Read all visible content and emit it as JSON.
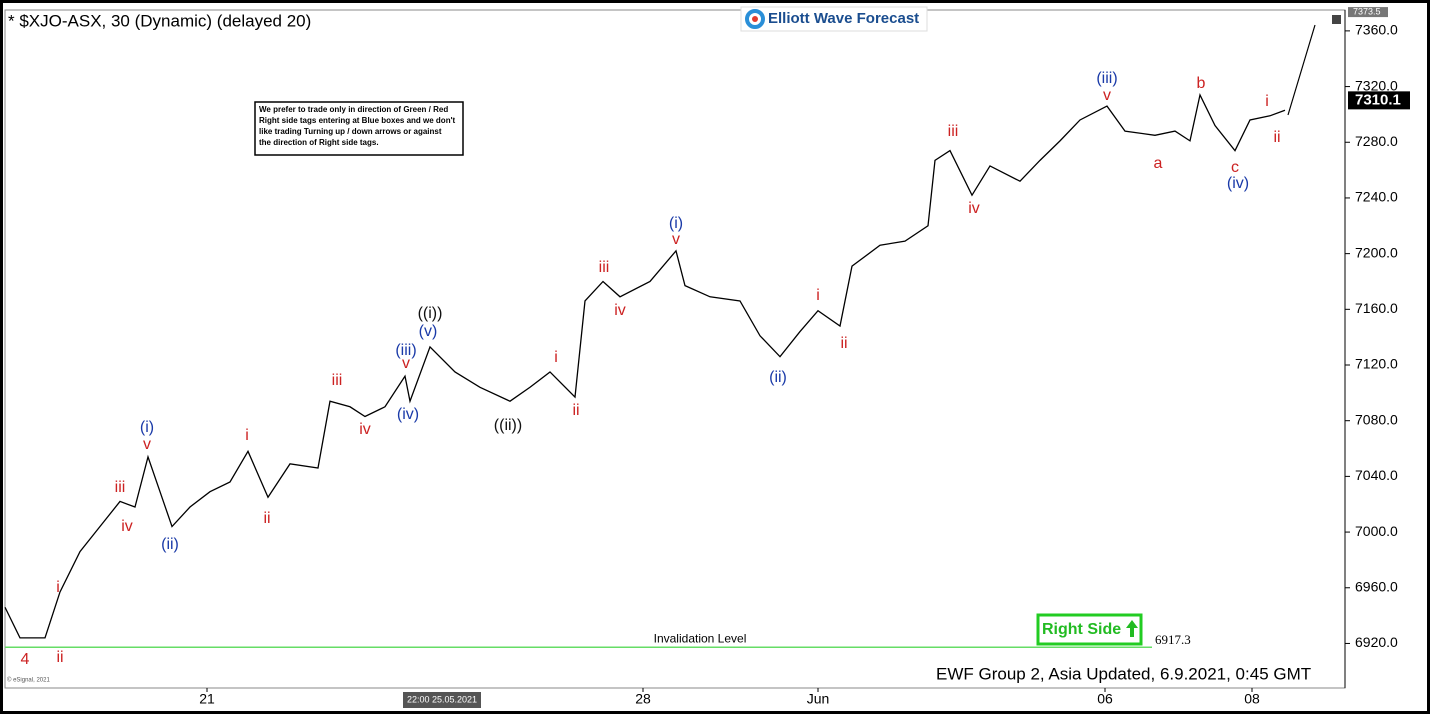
{
  "chart_data": {
    "type": "line",
    "title": "* $XJO-ASX, 30 (Dynamic) (delayed 20)",
    "brand": "Elliott Wave Forecast",
    "note": [
      "We prefer to trade only in direction of Green / Red",
      "Right side tags entering at Blue boxes and we don't",
      "like trading Turning up / down arrows or against",
      "the direction of Right side tags."
    ],
    "footer": "EWF Group 2, Asia Updated, 6.9.2021, 0:45 GMT",
    "cursor_label": "22:00 25.05.2021",
    "copyright": "© eSignal, 2021",
    "right_side_label": "Right Side",
    "invalidation": {
      "label": "Invalidation Level",
      "value": 6917.3,
      "color": "#66dd66"
    },
    "last_price": 7310.1,
    "top_price": 7373.5,
    "x": [
      0,
      3,
      8,
      11,
      15,
      19,
      23,
      26,
      28.6,
      31,
      33.4,
      37,
      41,
      45,
      48.6,
      52.6,
      57,
      62.6,
      65,
      69,
      72,
      76,
      80,
      81,
      85,
      90,
      95,
      101,
      105,
      109,
      114,
      116,
      119.6,
      123,
      129,
      134.2,
      136,
      141,
      147,
      151,
      155,
      159,
      162.6,
      167,
      169.4,
      175,
      180,
      184.6,
      186,
      189,
      193.4,
      197,
      203,
      207,
      211,
      215,
      220.4,
      224,
      230,
      234,
      237,
      239,
      242,
      246,
      249,
      253,
      256
    ],
    "series": [
      {
        "name": "$XJO-ASX",
        "color": "#000000",
        "values": [
          6946,
          6924,
          6924,
          6957,
          6986,
          7004,
          7022,
          7018,
          7054,
          7029,
          7004,
          7018,
          7029,
          7036,
          7058,
          7025,
          7049,
          7046,
          7094,
          7090,
          7083,
          7090,
          7112,
          7094,
          7133,
          7115,
          7104,
          7094,
          7104,
          7115,
          7097,
          7166,
          7180,
          7169,
          7180,
          7202,
          7177,
          7169,
          7166,
          7141,
          7126,
          7144,
          7159,
          7148,
          7191,
          7206,
          7209,
          7220,
          7267,
          7274,
          7242,
          7263,
          7252,
          7267,
          7281,
          7296,
          7306,
          7288,
          7285,
          7288,
          7281,
          7314,
          7292,
          7274,
          7296,
          7299,
          7303
        ]
      }
    ],
    "xlim": [
      0,
      268
    ],
    "xticks": [
      {
        "value": 40.4,
        "label": "21"
      },
      {
        "value": 127.6,
        "label": "28"
      },
      {
        "value": 162.6,
        "label": "Jun"
      },
      {
        "value": 220,
        "label": "06"
      },
      {
        "value": 249.4,
        "label": "08"
      }
    ],
    "ylim": [
      6888,
      7375
    ],
    "yticks": [
      {
        "value": 6920,
        "label": "6920.0"
      },
      {
        "value": 6960,
        "label": "6960.0"
      },
      {
        "value": 7000,
        "label": "7000.0"
      },
      {
        "value": 7040,
        "label": "7040.0"
      },
      {
        "value": 7080,
        "label": "7080.0"
      },
      {
        "value": 7120,
        "label": "7120.0"
      },
      {
        "value": 7160,
        "label": "7160.0"
      },
      {
        "value": 7200,
        "label": "7200.0"
      },
      {
        "value": 7240,
        "label": "7240.0"
      },
      {
        "value": 7280,
        "label": "7280.0"
      },
      {
        "value": 7320,
        "label": "7320.0"
      },
      {
        "value": 7360,
        "label": "7360.0"
      }
    ],
    "annotations": [
      {
        "text": "4",
        "color": "#cc2222"
      },
      {
        "text": "ii",
        "color": "#cc2222"
      },
      {
        "text": "i",
        "color": "#cc2222"
      },
      {
        "text": "iii",
        "color": "#cc2222"
      },
      {
        "text": "iv",
        "color": "#cc2222"
      },
      {
        "text": "(i)",
        "color": "#1a3aa8"
      },
      {
        "text": "v",
        "color": "#cc2222"
      },
      {
        "text": "(ii)",
        "color": "#1a3aa8"
      },
      {
        "text": "i",
        "color": "#cc2222"
      },
      {
        "text": "ii",
        "color": "#cc2222"
      },
      {
        "text": "iii",
        "color": "#cc2222"
      },
      {
        "text": "iv",
        "color": "#cc2222"
      },
      {
        "text": "(iii)",
        "color": "#1a3aa8"
      },
      {
        "text": "v",
        "color": "#cc2222"
      },
      {
        "text": "(iv)",
        "color": "#1a3aa8"
      },
      {
        "text": "((i))",
        "color": "#111111"
      },
      {
        "text": "(v)",
        "color": "#1a3aa8"
      },
      {
        "text": "((ii))",
        "color": "#111111"
      },
      {
        "text": "i",
        "color": "#cc2222"
      },
      {
        "text": "ii",
        "color": "#cc2222"
      },
      {
        "text": "iii",
        "color": "#cc2222"
      },
      {
        "text": "iv",
        "color": "#cc2222"
      },
      {
        "text": "(i)",
        "color": "#1a3aa8"
      },
      {
        "text": "v",
        "color": "#cc2222"
      },
      {
        "text": "(ii)",
        "color": "#1a3aa8"
      },
      {
        "text": "i",
        "color": "#cc2222"
      },
      {
        "text": "ii",
        "color": "#cc2222"
      },
      {
        "text": "iii",
        "color": "#cc2222"
      },
      {
        "text": "iv",
        "color": "#cc2222"
      },
      {
        "text": "(iii)",
        "color": "#1a3aa8"
      },
      {
        "text": "v",
        "color": "#cc2222"
      },
      {
        "text": "a",
        "color": "#cc2222"
      },
      {
        "text": "b",
        "color": "#cc2222"
      },
      {
        "text": "c",
        "color": "#cc2222"
      },
      {
        "text": "(iv)",
        "color": "#1a3aa8"
      },
      {
        "text": "i",
        "color": "#cc2222"
      },
      {
        "text": "ii",
        "color": "#cc2222"
      }
    ]
  }
}
